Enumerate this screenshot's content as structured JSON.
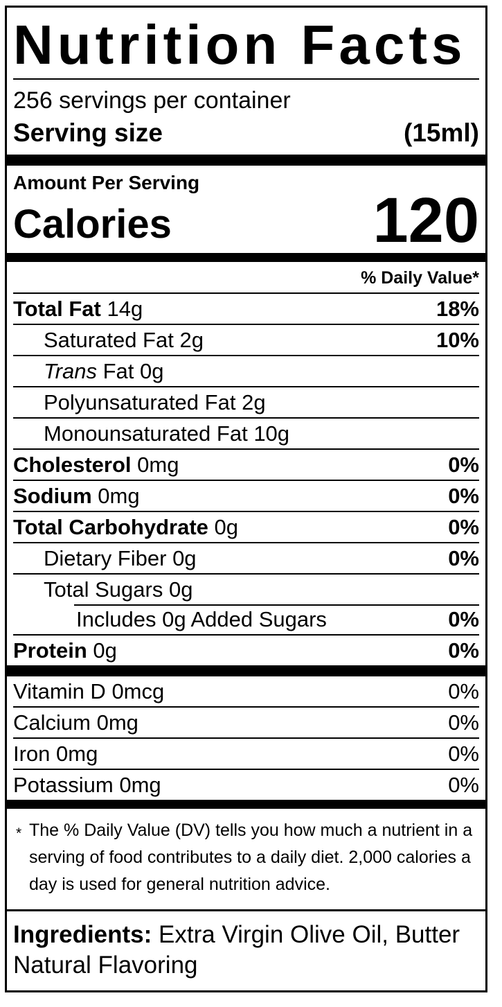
{
  "title": "Nutrition Facts",
  "servings_per_container": "256 servings per container",
  "serving_size": {
    "label": "Serving size",
    "value": "(15ml)"
  },
  "calories": {
    "header": "Amount Per Serving",
    "label": "Calories",
    "value": "120"
  },
  "daily_value_header": "% Daily Value*",
  "nutrients": [
    {
      "name": "Total Fat",
      "amount": "14g",
      "dv": "18%"
    },
    {
      "name": "Saturated Fat",
      "amount": "2g",
      "dv": "10%"
    },
    {
      "italic_prefix": "Trans",
      "name": "Fat",
      "amount": "0g",
      "dv": ""
    },
    {
      "name": "Polyunsaturated Fat",
      "amount": "2g",
      "dv": ""
    },
    {
      "name": "Monounsaturated Fat",
      "amount": "10g",
      "dv": ""
    },
    {
      "name": "Cholesterol",
      "amount": "0mg",
      "dv": "0%"
    },
    {
      "name": "Sodium",
      "amount": "0mg",
      "dv": "0%"
    },
    {
      "name": "Total Carbohydrate",
      "amount": "0g",
      "dv": "0%"
    },
    {
      "name": "Dietary Fiber",
      "amount": "0g",
      "dv": "0%"
    },
    {
      "name": "Total Sugars",
      "amount": "0g",
      "dv": ""
    },
    {
      "name": "Includes 0g Added Sugars",
      "amount": "",
      "dv": "0%"
    },
    {
      "name": "Protein",
      "amount": "0g",
      "dv": "0%"
    }
  ],
  "micronutrients": [
    {
      "name": "Vitamin D",
      "amount": "0mcg",
      "dv": "0%"
    },
    {
      "name": "Calcium",
      "amount": "0mg",
      "dv": "0%"
    },
    {
      "name": "Iron",
      "amount": "0mg",
      "dv": "0%"
    },
    {
      "name": "Potassium",
      "amount": "0mg",
      "dv": "0%"
    }
  ],
  "footnote": {
    "asterisk": "*",
    "text": "The % Daily Value (DV) tells you how much a nutrient in a serving of food contributes to a daily diet. 2,000 calories a day is used for general nutrition advice."
  },
  "ingredients": {
    "label": "Ingredients:",
    "text": "Extra Virgin Olive Oil, Butter Natural Flavoring"
  },
  "colors": {
    "text": "#000000",
    "background": "#ffffff"
  }
}
